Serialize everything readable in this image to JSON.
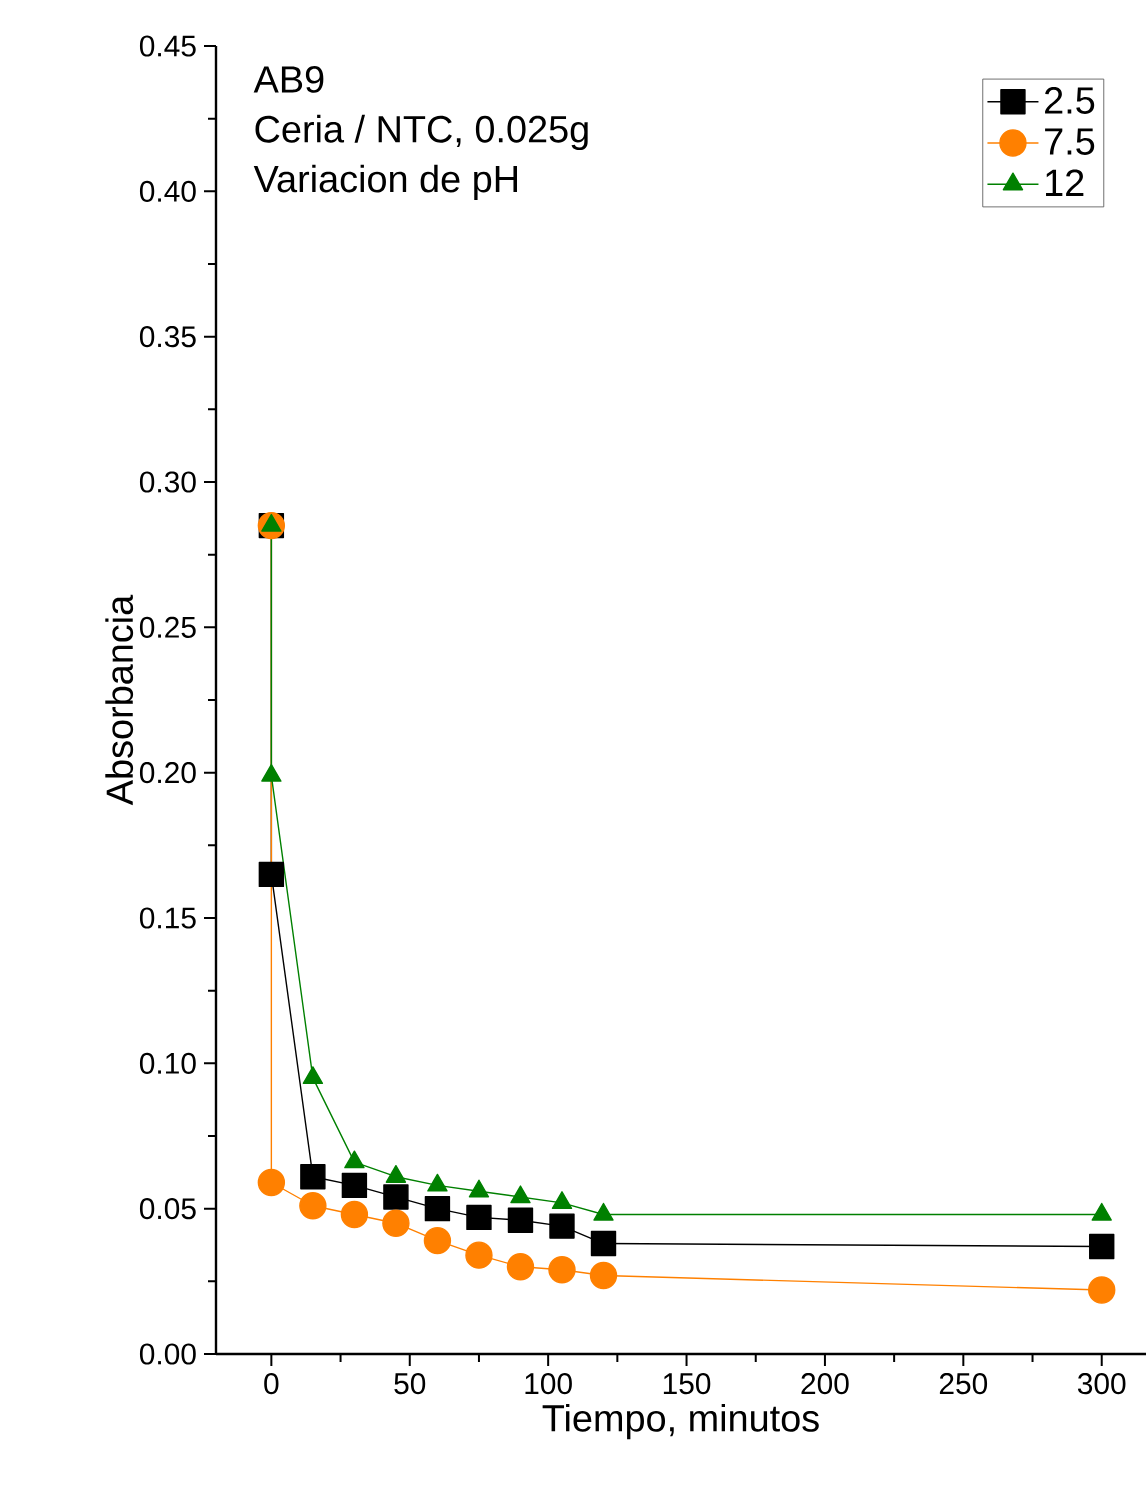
{
  "chart_data": {
    "type": "line",
    "xlabel": "Tiempo, minutos",
    "ylabel": "Absorbancia",
    "annotations": [
      "AB9",
      "Ceria / NTC, 0.025g",
      "Variacion de pH"
    ],
    "xlim": [
      -20,
      316
    ],
    "ylim": [
      0,
      0.45
    ],
    "xticks": [
      0,
      {
        "value": 25,
        "label": null
      },
      50,
      {
        "value": 75,
        "label": null
      },
      100,
      {
        "value": 125,
        "label": null
      },
      150,
      {
        "value": 175,
        "label": null
      },
      200,
      {
        "value": 225,
        "label": null
      },
      250,
      {
        "value": 275,
        "label": null
      },
      300
    ],
    "yticks": [
      {
        "value": 0,
        "label": "0.00"
      },
      {
        "value": 0.025,
        "label": null
      },
      {
        "value": 0.05,
        "label": "0.05"
      },
      {
        "value": 0.075,
        "label": null
      },
      {
        "value": 0.1,
        "label": "0.10"
      },
      {
        "value": 0.125,
        "label": null
      },
      {
        "value": 0.15,
        "label": "0.15"
      },
      {
        "value": 0.175,
        "label": null
      },
      {
        "value": 0.2,
        "label": "0.20"
      },
      {
        "value": 0.225,
        "label": null
      },
      {
        "value": 0.25,
        "label": "0.25"
      },
      {
        "value": 0.275,
        "label": null
      },
      {
        "value": 0.3,
        "label": "0.30"
      },
      {
        "value": 0.325,
        "label": null
      },
      {
        "value": 0.35,
        "label": "0.35"
      },
      {
        "value": 0.375,
        "label": null
      },
      {
        "value": 0.4,
        "label": "0.40"
      },
      {
        "value": 0.425,
        "label": null
      },
      {
        "value": 0.45,
        "label": "0.45"
      }
    ],
    "legend": "top right",
    "grid": false,
    "line_style": "solid",
    "series": [
      {
        "name": "2.5",
        "color": "#000000",
        "marker": "square",
        "x": [
          0,
          0,
          15,
          30,
          45,
          60,
          75,
          90,
          105,
          120,
          300
        ],
        "values": [
          0.285,
          0.165,
          0.061,
          0.058,
          0.054,
          0.05,
          0.047,
          0.046,
          0.044,
          0.038,
          0.037
        ]
      },
      {
        "name": "7.5",
        "color": "#ff8000",
        "marker": "circle",
        "x": [
          0,
          0,
          15,
          30,
          45,
          60,
          75,
          90,
          105,
          120,
          300
        ],
        "values": [
          0.285,
          0.059,
          0.051,
          0.048,
          0.045,
          0.039,
          0.034,
          0.03,
          0.029,
          0.027,
          0.022
        ]
      },
      {
        "name": "12",
        "color": "#008000",
        "marker": "triangle",
        "x": [
          0,
          0,
          15,
          30,
          45,
          60,
          75,
          90,
          105,
          120,
          300
        ],
        "values": [
          0.285,
          0.199,
          0.095,
          0.066,
          0.061,
          0.058,
          0.056,
          0.054,
          0.052,
          0.048,
          0.048
        ]
      }
    ]
  }
}
